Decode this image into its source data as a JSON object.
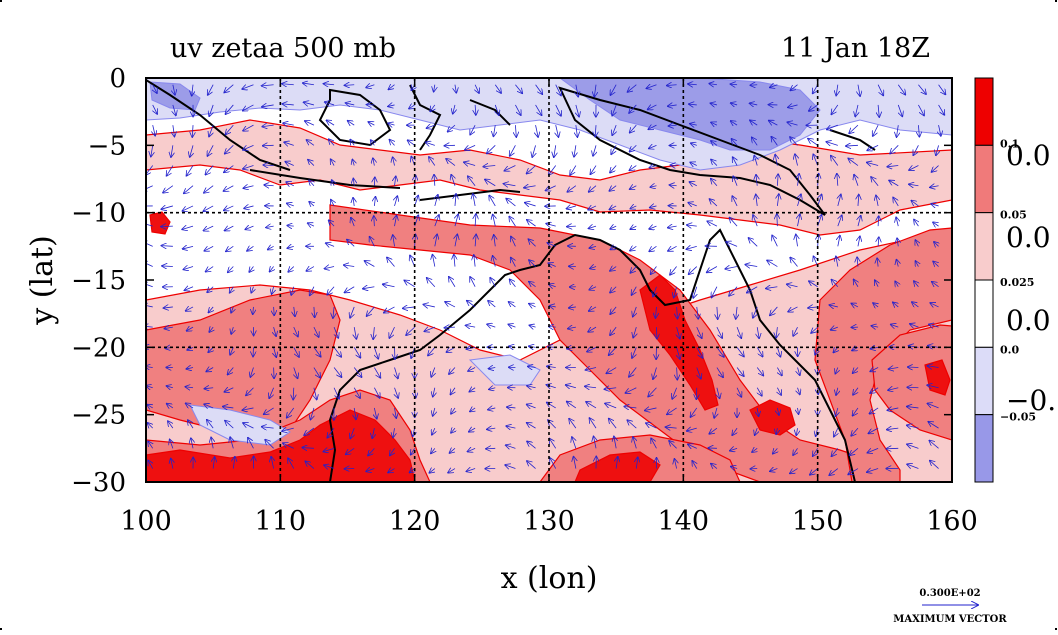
{
  "chart_data": {
    "type": "heatmap",
    "title": "uv zetaa 500 mb",
    "subtitle": "11 Jan 18Z",
    "xlabel": "x (lon)",
    "ylabel": "y (lat)",
    "xlim": [
      100,
      160
    ],
    "ylim": [
      -30,
      0
    ],
    "x_ticks": [
      "100",
      "110",
      "120",
      "130",
      "140",
      "150",
      "160"
    ],
    "y_ticks": [
      "0",
      "−5",
      "−10",
      "−15",
      "−20",
      "−25",
      "−30"
    ],
    "grid": true,
    "colorbar": {
      "levels": [
        0.1,
        0.05,
        0.025,
        0.0,
        -0.05
      ],
      "labels_small": [
        "0.1",
        "0.05",
        "0.025",
        "0.0",
        "−0.05"
      ],
      "labels_large": [
        "0.0",
        "0.0",
        "0.0",
        "−0."
      ],
      "colors": [
        "#ee0000",
        "#f07a7a",
        "#f8cccc",
        "#ffffff",
        "#dcdcf8",
        "#9898e8"
      ]
    },
    "fill_colors": {
      "strong_pos": "#ee1010",
      "pos": "#f08080",
      "weak_pos": "#f8cccc",
      "neutral": "#ffffff",
      "weak_neg": "#dcdcf6",
      "neg": "#9c9ce8",
      "contour": "#ee0000",
      "neg_contour": "#8888ee",
      "coast": "#000000",
      "vector": "#2222cc"
    },
    "vector_scale": {
      "value": "0.300E+02",
      "label": "MAXIMUM VECTOR"
    }
  }
}
